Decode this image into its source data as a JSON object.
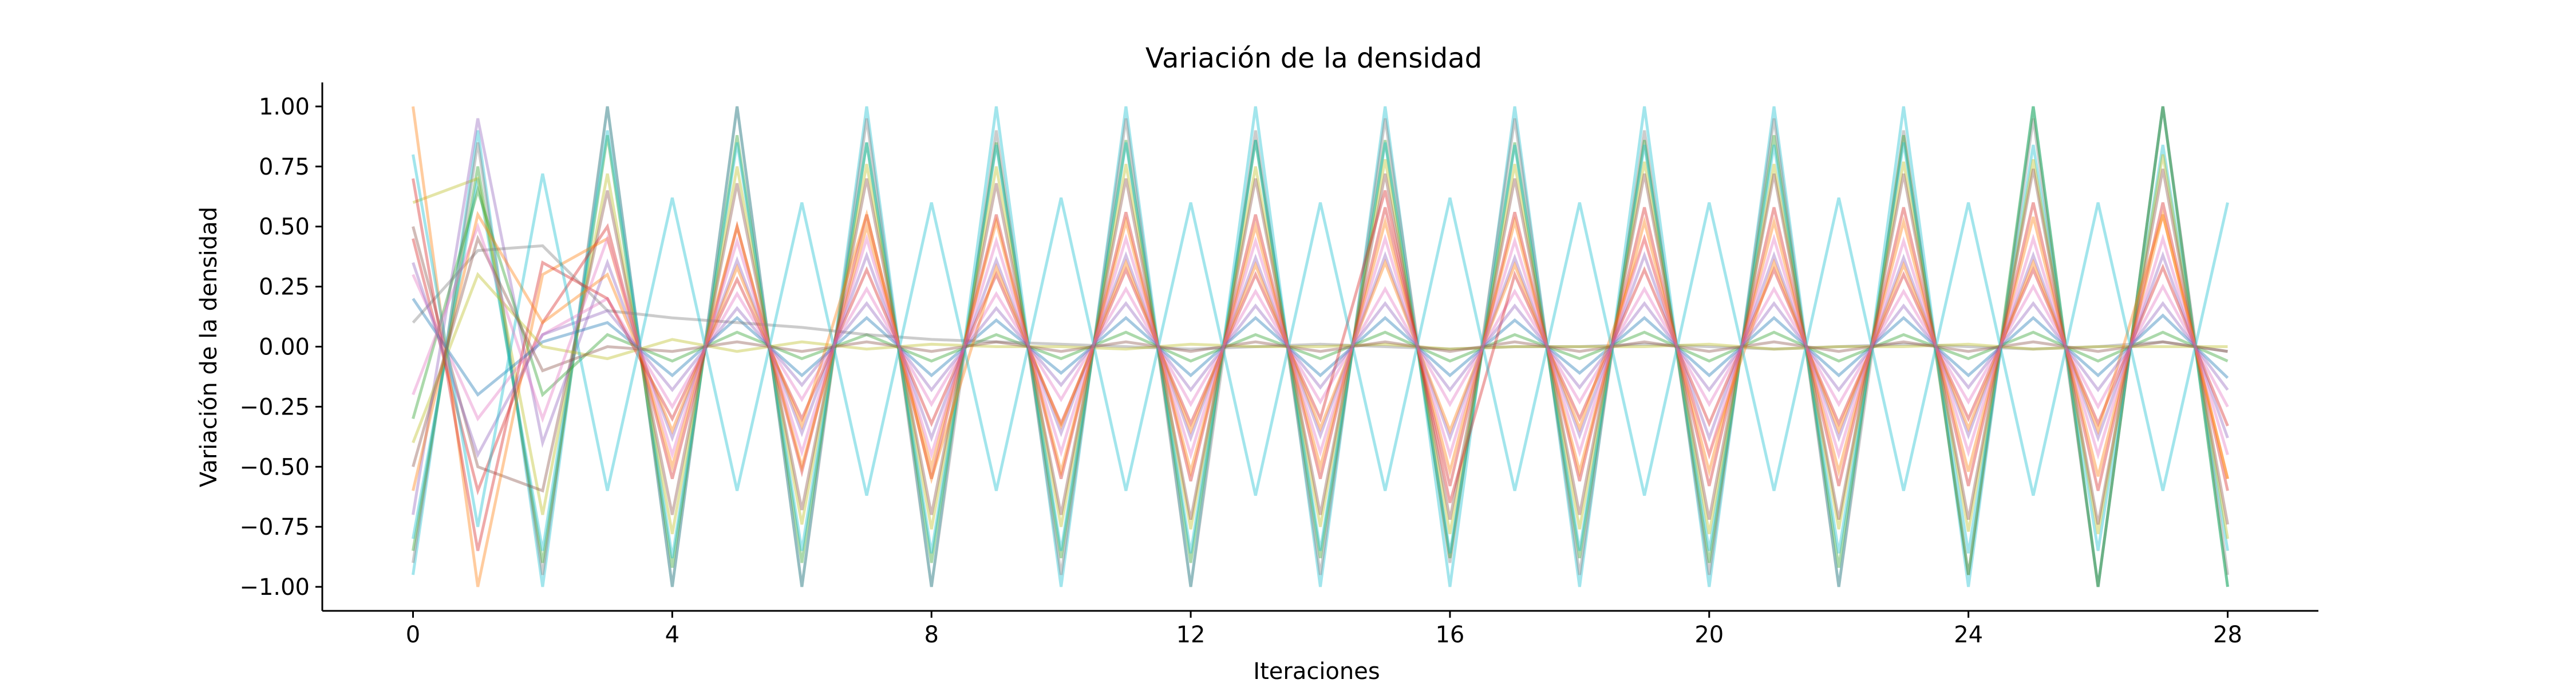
{
  "chart_data": {
    "type": "line",
    "title": "Variación de la densidad",
    "xlabel": "Iteraciones",
    "ylabel": "Variación de la densidad",
    "xlim": [
      -1.4,
      29.4
    ],
    "ylim": [
      -1.1,
      1.1
    ],
    "xticks": [
      0,
      4,
      8,
      12,
      16,
      20,
      24,
      28
    ],
    "yticks": [
      1.0,
      0.75,
      0.5,
      0.25,
      0.0,
      -0.25,
      -0.5,
      -0.75,
      -1.0
    ],
    "ytick_labels": [
      "1.00",
      "0.75",
      "0.50",
      "0.25",
      "0.00",
      "−0.25",
      "−0.50",
      "−0.75",
      "−1.00"
    ],
    "grid": false,
    "line_alpha": 0.4,
    "palette": [
      "#1f77b4",
      "#ff7f0e",
      "#2ca02c",
      "#d62728",
      "#9467bd",
      "#8c564b",
      "#e377c2",
      "#7f7f7f",
      "#bcbd22",
      "#17becf"
    ],
    "series": [
      {
        "color": "#17becf",
        "values": [
          -0.95,
          0.9,
          -1.0,
          1.0,
          -1.0,
          1.0,
          -1.0,
          1.0,
          -1.0,
          1.0,
          -1.0,
          1.0,
          -1.0,
          1.0,
          -1.0,
          1.0,
          -1.0,
          1.0,
          -1.0,
          1.0,
          -1.0,
          1.0,
          -1.0,
          1.0,
          -1.0,
          1.0,
          -1.0,
          1.0,
          -1.0
        ]
      },
      {
        "color": "#7f7f7f",
        "values": [
          -0.9,
          0.85,
          -0.95,
          1.0,
          -1.0,
          1.0,
          -1.0,
          0.95,
          -1.0,
          0.9,
          -0.95,
          0.95,
          -1.0,
          0.9,
          -0.95,
          0.95,
          -0.9,
          0.95,
          -0.95,
          0.9,
          -0.95,
          0.95,
          -1.0,
          0.9,
          -0.95,
          0.95,
          -1.0,
          1.0,
          -0.95
        ]
      },
      {
        "color": "#2ca02c",
        "values": [
          -0.85,
          0.75,
          -0.9,
          0.88,
          -0.92,
          0.88,
          -0.9,
          0.85,
          -0.9,
          0.85,
          -0.88,
          0.86,
          -0.9,
          0.86,
          -0.88,
          0.86,
          -0.88,
          0.85,
          -0.88,
          0.86,
          -0.9,
          0.88,
          -0.92,
          0.88,
          -0.95,
          1.0,
          -1.0,
          1.0,
          -1.0
        ]
      },
      {
        "color": "#17becf",
        "values": [
          -0.8,
          0.7,
          -0.85,
          0.9,
          -0.88,
          0.85,
          -0.85,
          0.85,
          -0.86,
          0.84,
          -0.85,
          0.85,
          -0.86,
          0.86,
          -0.85,
          0.85,
          -0.86,
          0.84,
          -0.85,
          0.84,
          -0.85,
          0.84,
          -0.86,
          0.85,
          -0.86,
          0.84,
          -0.85,
          0.84,
          -0.85
        ]
      },
      {
        "color": "#bcbd22",
        "values": [
          0.6,
          0.7,
          -0.7,
          0.72,
          -0.78,
          0.75,
          -0.74,
          0.76,
          -0.76,
          0.75,
          -0.75,
          0.76,
          -0.76,
          0.75,
          -0.75,
          0.78,
          -0.78,
          0.76,
          -0.76,
          0.77,
          -0.78,
          0.76,
          -0.76,
          0.77,
          -0.77,
          0.78,
          -0.78,
          0.8,
          -0.8
        ]
      },
      {
        "color": "#8c564b",
        "values": [
          0.5,
          -0.5,
          -0.6,
          0.65,
          -0.7,
          0.68,
          -0.68,
          0.7,
          -0.7,
          0.68,
          -0.7,
          0.7,
          -0.72,
          0.7,
          -0.7,
          0.72,
          -0.72,
          0.7,
          -0.7,
          0.72,
          -0.72,
          0.72,
          -0.72,
          0.72,
          -0.72,
          0.74,
          -0.74,
          0.74,
          -0.74
        ]
      },
      {
        "color": "#d62728",
        "values": [
          0.45,
          -0.6,
          0.1,
          0.5,
          -0.55,
          0.5,
          -0.52,
          0.55,
          -0.55,
          0.55,
          -0.55,
          0.56,
          -0.56,
          0.55,
          -0.55,
          0.58,
          -0.58,
          0.56,
          -0.56,
          0.58,
          -0.58,
          0.58,
          -0.58,
          0.58,
          -0.58,
          0.6,
          -0.6,
          0.6,
          -0.6
        ]
      },
      {
        "color": "#ff7f0e",
        "values": [
          1.0,
          -1.0,
          0.3,
          0.45,
          -0.5,
          0.5,
          -0.5,
          0.5,
          -0.5,
          0.52,
          -0.52,
          0.52,
          -0.52,
          0.5,
          -0.5,
          0.52,
          -0.52,
          0.52,
          -0.52,
          0.52,
          -0.52,
          0.52,
          -0.52,
          0.52,
          -0.52,
          0.54,
          -0.54,
          0.55,
          -0.55
        ]
      },
      {
        "color": "#9467bd",
        "values": [
          -0.7,
          0.95,
          -0.4,
          0.35,
          -0.38,
          0.36,
          -0.36,
          0.38,
          -0.38,
          0.36,
          -0.36,
          0.38,
          -0.38,
          0.37,
          -0.37,
          0.38,
          -0.38,
          0.37,
          -0.37,
          0.38,
          -0.38,
          0.38,
          -0.38,
          0.37,
          -0.37,
          0.38,
          -0.38,
          0.38,
          -0.38
        ]
      },
      {
        "color": "#e377c2",
        "values": [
          0.3,
          -0.3,
          0.05,
          0.2,
          -0.25,
          0.22,
          -0.22,
          0.24,
          -0.24,
          0.22,
          -0.22,
          0.24,
          -0.24,
          0.23,
          -0.23,
          0.24,
          -0.24,
          0.23,
          -0.23,
          0.24,
          -0.24,
          0.24,
          -0.24,
          0.23,
          -0.23,
          0.25,
          -0.25,
          0.25,
          -0.25
        ]
      },
      {
        "color": "#1f77b4",
        "values": [
          0.2,
          -0.2,
          0.02,
          0.1,
          -0.12,
          0.12,
          -0.12,
          0.12,
          -0.12,
          0.11,
          -0.11,
          0.12,
          -0.12,
          0.12,
          -0.12,
          0.12,
          -0.12,
          0.11,
          -0.11,
          0.12,
          -0.12,
          0.12,
          -0.12,
          0.12,
          -0.12,
          0.12,
          -0.12,
          0.13,
          -0.13
        ]
      },
      {
        "color": "#2ca02c",
        "values": [
          -0.3,
          0.65,
          -0.2,
          0.05,
          -0.06,
          0.06,
          -0.05,
          0.05,
          -0.06,
          0.05,
          -0.05,
          0.06,
          -0.06,
          0.05,
          -0.05,
          0.06,
          -0.06,
          0.05,
          -0.05,
          0.06,
          -0.06,
          0.06,
          -0.06,
          0.05,
          -0.05,
          0.06,
          -0.06,
          0.06,
          -0.06
        ]
      },
      {
        "color": "#7f7f7f",
        "values": [
          0.1,
          0.4,
          0.42,
          0.15,
          0.12,
          0.1,
          0.08,
          0.05,
          0.03,
          0.02,
          0.01,
          0.0,
          -0.01,
          0.0,
          0.01,
          0.0,
          -0.01,
          0.0,
          0.0,
          0.01,
          0.0,
          -0.01,
          0.0,
          0.01,
          0.0,
          -0.01,
          0.0,
          0.02,
          -0.02
        ]
      },
      {
        "color": "#bcbd22",
        "values": [
          -0.4,
          0.3,
          0.0,
          -0.05,
          0.03,
          -0.02,
          0.02,
          -0.01,
          0.01,
          0.0,
          0.0,
          -0.01,
          0.01,
          0.0,
          0.0,
          0.01,
          -0.01,
          0.0,
          0.0,
          0.0,
          0.01,
          -0.01,
          0.0,
          0.0,
          0.01,
          -0.01,
          0.0,
          0.0,
          0.0
        ]
      },
      {
        "color": "#d62728",
        "values": [
          0.7,
          -0.85,
          0.35,
          0.2,
          -0.3,
          0.28,
          -0.3,
          0.32,
          -0.32,
          0.3,
          -0.32,
          0.32,
          -0.32,
          0.3,
          -0.3,
          0.65,
          -0.65,
          0.3,
          -0.3,
          0.32,
          -0.32,
          0.32,
          -0.32,
          0.3,
          -0.3,
          0.32,
          -0.32,
          0.33,
          -0.33
        ]
      },
      {
        "color": "#ff7f0e",
        "values": [
          -0.6,
          0.55,
          0.1,
          0.3,
          -0.35,
          0.33,
          -0.33,
          0.55,
          -0.55,
          0.33,
          -0.33,
          0.35,
          -0.35,
          0.34,
          -0.34,
          0.35,
          -0.35,
          0.34,
          -0.34,
          0.45,
          -0.45,
          0.35,
          -0.35,
          0.34,
          -0.34,
          0.35,
          -0.35,
          0.55,
          -0.55
        ]
      },
      {
        "color": "#9467bd",
        "values": [
          0.35,
          -0.45,
          0.05,
          0.15,
          -0.18,
          0.16,
          -0.16,
          0.18,
          -0.18,
          0.16,
          -0.16,
          0.18,
          -0.18,
          0.17,
          -0.17,
          0.18,
          -0.18,
          0.17,
          -0.17,
          0.18,
          -0.18,
          0.18,
          -0.18,
          0.17,
          -0.17,
          0.18,
          -0.18,
          0.18,
          -0.18
        ]
      },
      {
        "color": "#17becf",
        "values": [
          0.8,
          -0.75,
          0.72,
          -0.6,
          0.62,
          -0.6,
          0.6,
          -0.62,
          0.6,
          -0.6,
          0.62,
          -0.6,
          0.6,
          -0.62,
          0.6,
          -0.6,
          0.62,
          -0.6,
          0.6,
          -0.62,
          0.6,
          -0.6,
          0.62,
          -0.6,
          0.6,
          -0.62,
          0.6,
          -0.6,
          0.6
        ]
      },
      {
        "color": "#8c564b",
        "values": [
          -0.5,
          0.45,
          -0.1,
          0.0,
          -0.02,
          0.02,
          -0.02,
          0.02,
          -0.02,
          0.02,
          -0.02,
          0.02,
          -0.02,
          0.02,
          -0.02,
          0.02,
          -0.02,
          0.02,
          -0.02,
          0.02,
          -0.02,
          0.02,
          -0.02,
          0.02,
          -0.02,
          0.02,
          -0.02,
          0.02,
          -0.02
        ]
      },
      {
        "color": "#e377c2",
        "values": [
          -0.2,
          0.5,
          -0.3,
          0.45,
          -0.45,
          0.44,
          -0.44,
          0.45,
          -0.45,
          0.44,
          -0.44,
          0.45,
          -0.45,
          0.44,
          -0.44,
          0.45,
          -0.45,
          0.44,
          -0.44,
          0.45,
          -0.45,
          0.45,
          -0.45,
          0.44,
          -0.44,
          0.45,
          -0.45,
          0.45,
          -0.45
        ]
      }
    ]
  }
}
